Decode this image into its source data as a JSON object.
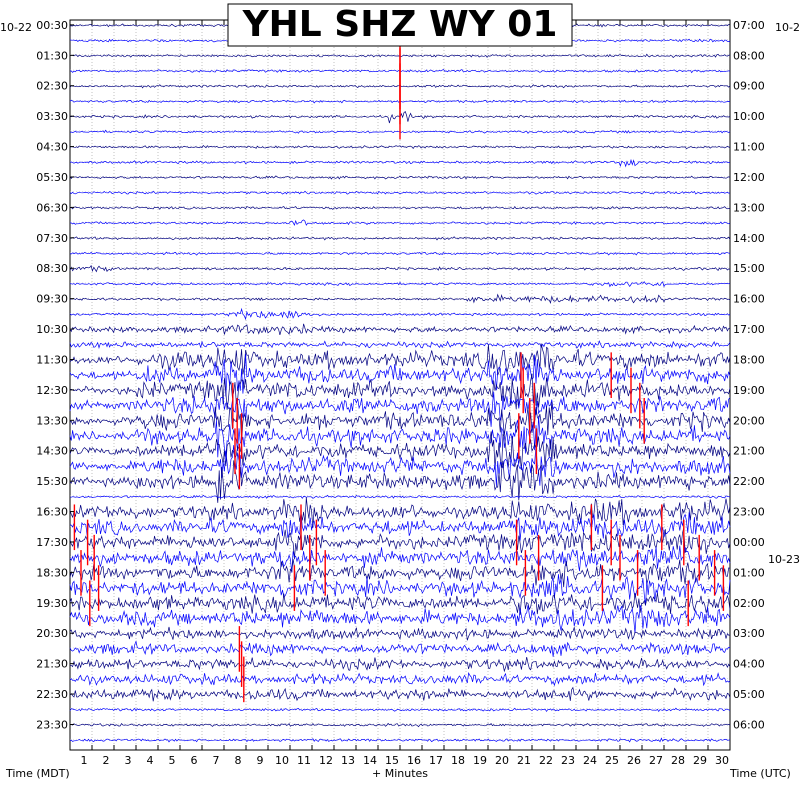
{
  "chart_data": {
    "type": "line",
    "title": "YHL SHZ WY 01",
    "left_date": "10-22",
    "right_date_top": "10-2",
    "right_date_mid": "10-23",
    "left_axis_label": "Time (MDT)",
    "right_axis_label": "Time (UTC)",
    "x_axis_label": "+ Minutes",
    "x_ticks": [
      "1",
      "2",
      "3",
      "4",
      "5",
      "6",
      "7",
      "8",
      "9",
      "10",
      "11",
      "12",
      "13",
      "14",
      "15",
      "16",
      "17",
      "18",
      "19",
      "20",
      "21",
      "22",
      "23",
      "24",
      "25",
      "26",
      "27",
      "28",
      "29",
      "30"
    ],
    "left_labels": [
      "00:30",
      "01:30",
      "02:30",
      "03:30",
      "04:30",
      "05:30",
      "06:30",
      "07:30",
      "08:30",
      "09:30",
      "10:30",
      "11:30",
      "12:30",
      "13:30",
      "14:30",
      "15:30",
      "16:30",
      "17:30",
      "18:30",
      "19:30",
      "20:30",
      "21:30",
      "22:30",
      "23:30"
    ],
    "right_labels": [
      "07:00",
      "08:00",
      "09:00",
      "10:00",
      "11:00",
      "12:00",
      "13:00",
      "14:00",
      "15:00",
      "16:00",
      "17:00",
      "18:00",
      "19:00",
      "20:00",
      "21:00",
      "22:00",
      "23:00",
      "00:00",
      "01:00",
      "02:00",
      "03:00",
      "04:00",
      "05:00",
      "06:00"
    ],
    "xlim": [
      0,
      30
    ],
    "rows_per_day": 48,
    "trace_colors": [
      "#000080",
      "#0000ff"
    ],
    "clip_color": "#ff0000",
    "grid": true
  }
}
